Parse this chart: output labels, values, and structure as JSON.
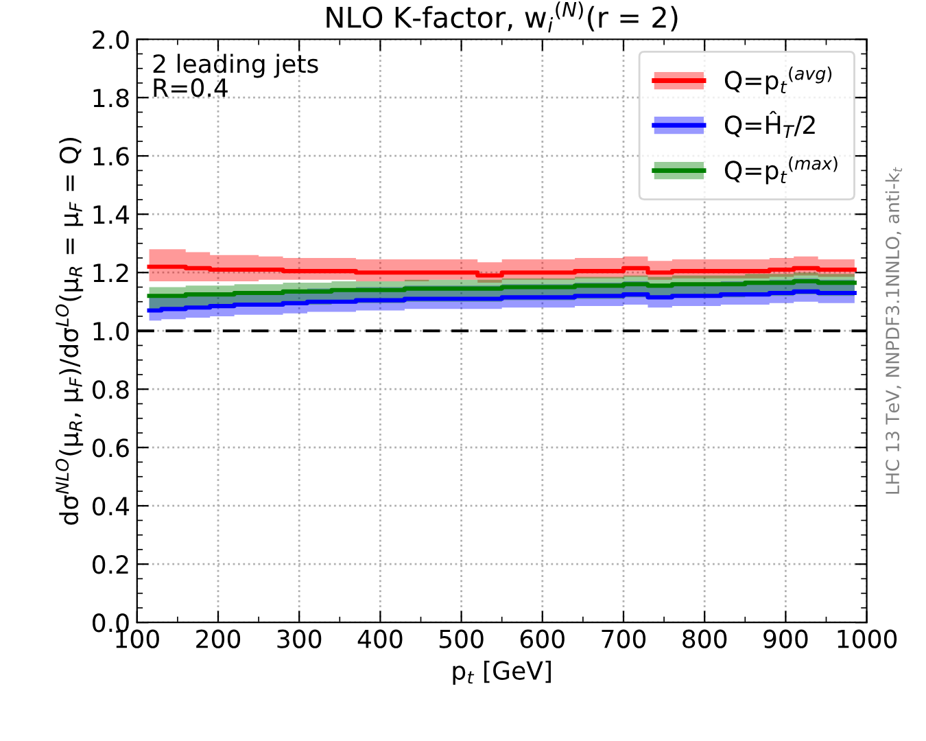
{
  "chart_data": {
    "type": "step",
    "title": "NLO K-factor, w$_{i}$$^{(N)}$(r = 2)",
    "xlabel": "p$_{t}$ [GeV]",
    "ylabel": "dσ$^{NLO}$(μ$_{R}$, μ$_{F}$)/dσ$^{LO}$(μ$_{R}$ = μ$_{F}$ = Q)",
    "annotations": [
      "2 leading jets\nR=0.4",
      "LHC 13 TeV, NNPDF3.1NNLO, anti-k$_{t}$"
    ],
    "x": [
      115,
      145,
      175,
      205,
      235,
      265,
      295,
      325,
      355,
      385,
      415,
      445,
      475,
      505,
      535,
      565,
      595,
      625,
      655,
      685,
      715,
      745,
      775,
      805,
      835,
      865,
      895,
      925,
      955,
      985
    ],
    "series": [
      {
        "name": "Q=p$_{t}$$^{(avg)}$",
        "color": "#ff0000",
        "values": [
          1.22,
          1.22,
          1.215,
          1.21,
          1.21,
          1.21,
          1.205,
          1.205,
          1.205,
          1.2,
          1.2,
          1.2,
          1.2,
          1.2,
          1.19,
          1.2,
          1.2,
          1.2,
          1.205,
          1.205,
          1.215,
          1.2,
          1.205,
          1.205,
          1.205,
          1.205,
          1.21,
          1.215,
          1.21,
          1.21
        ],
        "lower": [
          1.17,
          1.17,
          1.17,
          1.17,
          1.17,
          1.175,
          1.175,
          1.175,
          1.175,
          1.17,
          1.17,
          1.17,
          1.175,
          1.175,
          1.165,
          1.175,
          1.175,
          1.175,
          1.18,
          1.18,
          1.185,
          1.175,
          1.18,
          1.18,
          1.18,
          1.18,
          1.185,
          1.19,
          1.185,
          1.185
        ],
        "upper": [
          1.28,
          1.28,
          1.27,
          1.26,
          1.26,
          1.255,
          1.25,
          1.25,
          1.25,
          1.245,
          1.245,
          1.245,
          1.245,
          1.245,
          1.235,
          1.245,
          1.245,
          1.245,
          1.25,
          1.25,
          1.255,
          1.24,
          1.245,
          1.245,
          1.245,
          1.245,
          1.25,
          1.255,
          1.245,
          1.245
        ]
      },
      {
        "name": "Q=Ĥ$_{T}$/2",
        "color": "#0000ff",
        "values": [
          1.07,
          1.075,
          1.08,
          1.085,
          1.09,
          1.09,
          1.095,
          1.1,
          1.1,
          1.105,
          1.105,
          1.11,
          1.11,
          1.11,
          1.11,
          1.115,
          1.115,
          1.115,
          1.12,
          1.12,
          1.125,
          1.115,
          1.12,
          1.12,
          1.125,
          1.125,
          1.13,
          1.135,
          1.13,
          1.13
        ],
        "lower": [
          1.035,
          1.04,
          1.045,
          1.05,
          1.055,
          1.055,
          1.06,
          1.065,
          1.065,
          1.07,
          1.07,
          1.075,
          1.075,
          1.075,
          1.075,
          1.08,
          1.08,
          1.08,
          1.085,
          1.085,
          1.09,
          1.08,
          1.085,
          1.085,
          1.09,
          1.09,
          1.095,
          1.1,
          1.095,
          1.095
        ],
        "upper": [
          1.115,
          1.12,
          1.125,
          1.13,
          1.135,
          1.135,
          1.14,
          1.145,
          1.145,
          1.15,
          1.15,
          1.155,
          1.155,
          1.155,
          1.155,
          1.16,
          1.16,
          1.16,
          1.165,
          1.165,
          1.17,
          1.16,
          1.165,
          1.165,
          1.17,
          1.17,
          1.175,
          1.18,
          1.175,
          1.175
        ]
      },
      {
        "name": "Q=p$_{t}$$^{(max)}$",
        "color": "#008000",
        "values": [
          1.12,
          1.12,
          1.125,
          1.125,
          1.13,
          1.13,
          1.135,
          1.135,
          1.14,
          1.14,
          1.14,
          1.145,
          1.145,
          1.145,
          1.145,
          1.15,
          1.15,
          1.15,
          1.155,
          1.155,
          1.16,
          1.155,
          1.16,
          1.16,
          1.16,
          1.165,
          1.165,
          1.17,
          1.165,
          1.165
        ],
        "lower": [
          1.075,
          1.075,
          1.08,
          1.08,
          1.085,
          1.085,
          1.09,
          1.09,
          1.095,
          1.095,
          1.095,
          1.1,
          1.1,
          1.1,
          1.1,
          1.105,
          1.105,
          1.105,
          1.11,
          1.11,
          1.115,
          1.11,
          1.115,
          1.115,
          1.115,
          1.12,
          1.12,
          1.125,
          1.12,
          1.12
        ],
        "upper": [
          1.15,
          1.15,
          1.155,
          1.155,
          1.16,
          1.16,
          1.165,
          1.165,
          1.17,
          1.17,
          1.17,
          1.175,
          1.175,
          1.175,
          1.175,
          1.18,
          1.18,
          1.18,
          1.185,
          1.185,
          1.19,
          1.185,
          1.19,
          1.19,
          1.19,
          1.195,
          1.195,
          1.2,
          1.195,
          1.195
        ]
      }
    ],
    "xlim": [
      100,
      1000
    ],
    "xticks": [
      100,
      200,
      300,
      400,
      500,
      600,
      700,
      800,
      900,
      1000
    ],
    "ylim": [
      0,
      2
    ],
    "yticks": [
      {
        "value": 0,
        "label": "0.0"
      },
      0.2,
      0.4,
      0.6,
      0.8,
      {
        "value": 1,
        "label": "1.0"
      },
      1.2,
      1.4,
      1.6,
      1.8,
      {
        "value": 2,
        "label": "2.0"
      }
    ],
    "ref_lines": [
      {
        "axis": "y",
        "value": 1.0,
        "color": "#000000",
        "line_style": "dashed"
      }
    ],
    "grid": true,
    "legend": "top right"
  }
}
